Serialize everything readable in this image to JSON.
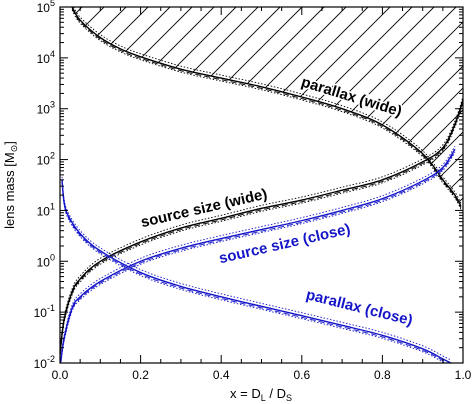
{
  "chart_data": {
    "type": "line",
    "xlabel": "x = D",
    "xlabel_sub1": "L",
    "xlabel_mid": " / D",
    "xlabel_sub2": "S",
    "ylabel": "lens mass [M",
    "ylabel_sym": "⊙",
    "ylabel_end": "]",
    "xlim": [
      0.0,
      1.0
    ],
    "ylim": [
      0.01,
      100000
    ],
    "yscale": "log",
    "x_ticks": [
      "0.0",
      "0.2",
      "0.4",
      "0.6",
      "0.8",
      "1.0"
    ],
    "y_ticks": [
      {
        "base": "10",
        "exp": "-2"
      },
      {
        "base": "10",
        "exp": "-1"
      },
      {
        "base": "10",
        "exp": "0"
      },
      {
        "base": "10",
        "exp": "1"
      },
      {
        "base": "10",
        "exp": "2"
      },
      {
        "base": "10",
        "exp": "3"
      },
      {
        "base": "10",
        "exp": "4"
      },
      {
        "base": "10",
        "exp": "5"
      }
    ],
    "grid": false,
    "hatched_region": "above parallax (wide)",
    "series": [
      {
        "name": "parallax (wide)",
        "color": "#000000",
        "x": [
          0.03,
          0.05,
          0.1,
          0.15,
          0.2,
          0.3,
          0.4,
          0.5,
          0.6,
          0.7,
          0.8,
          0.9,
          0.95,
          0.98,
          0.995
        ],
        "y": [
          100000,
          55000,
          25000,
          15000,
          10500,
          6000,
          4000,
          2700,
          1700,
          1000,
          480,
          130,
          40,
          20,
          12
        ]
      },
      {
        "name": "source size (wide)",
        "color": "#000000",
        "x": [
          0.0,
          0.01,
          0.03,
          0.05,
          0.1,
          0.2,
          0.3,
          0.4,
          0.5,
          0.6,
          0.7,
          0.8,
          0.9,
          0.95,
          0.98,
          1.0
        ],
        "y": [
          0.015,
          0.07,
          0.25,
          0.45,
          1.0,
          2.4,
          4.5,
          7.0,
          11,
          16,
          25,
          40,
          90,
          170,
          500,
          1500
        ]
      },
      {
        "name": "source size (close)",
        "color": "#1515c8",
        "x": [
          0.0,
          0.01,
          0.03,
          0.05,
          0.1,
          0.2,
          0.3,
          0.4,
          0.5,
          0.6,
          0.7,
          0.8,
          0.9,
          0.95,
          0.98
        ],
        "y": [
          0.008,
          0.03,
          0.12,
          0.2,
          0.4,
          1.0,
          1.8,
          2.8,
          4.2,
          6.3,
          10,
          17,
          38,
          70,
          160
        ]
      },
      {
        "name": "parallax (close)",
        "color": "#1515c8",
        "x": [
          0.005,
          0.01,
          0.02,
          0.05,
          0.1,
          0.2,
          0.3,
          0.4,
          0.5,
          0.6,
          0.7,
          0.8,
          0.9,
          0.95,
          0.97
        ],
        "y": [
          40,
          15,
          8,
          3.5,
          1.6,
          0.6,
          0.32,
          0.2,
          0.13,
          0.085,
          0.055,
          0.035,
          0.019,
          0.012,
          0.01
        ]
      }
    ],
    "labels": [
      {
        "text": "parallax (wide)",
        "color": "#000000",
        "x": 0.72,
        "y": 1400,
        "angle": 17
      },
      {
        "text": "source size (wide)",
        "color": "#000000",
        "x": 0.36,
        "y": 9,
        "angle": -13
      },
      {
        "text": "source size (close)",
        "color": "#1515c8",
        "x": 0.56,
        "y": 1.8,
        "angle": -13
      },
      {
        "text": "parallax (close)",
        "color": "#1515c8",
        "x": 0.74,
        "y": 0.1,
        "angle": 14
      }
    ]
  }
}
